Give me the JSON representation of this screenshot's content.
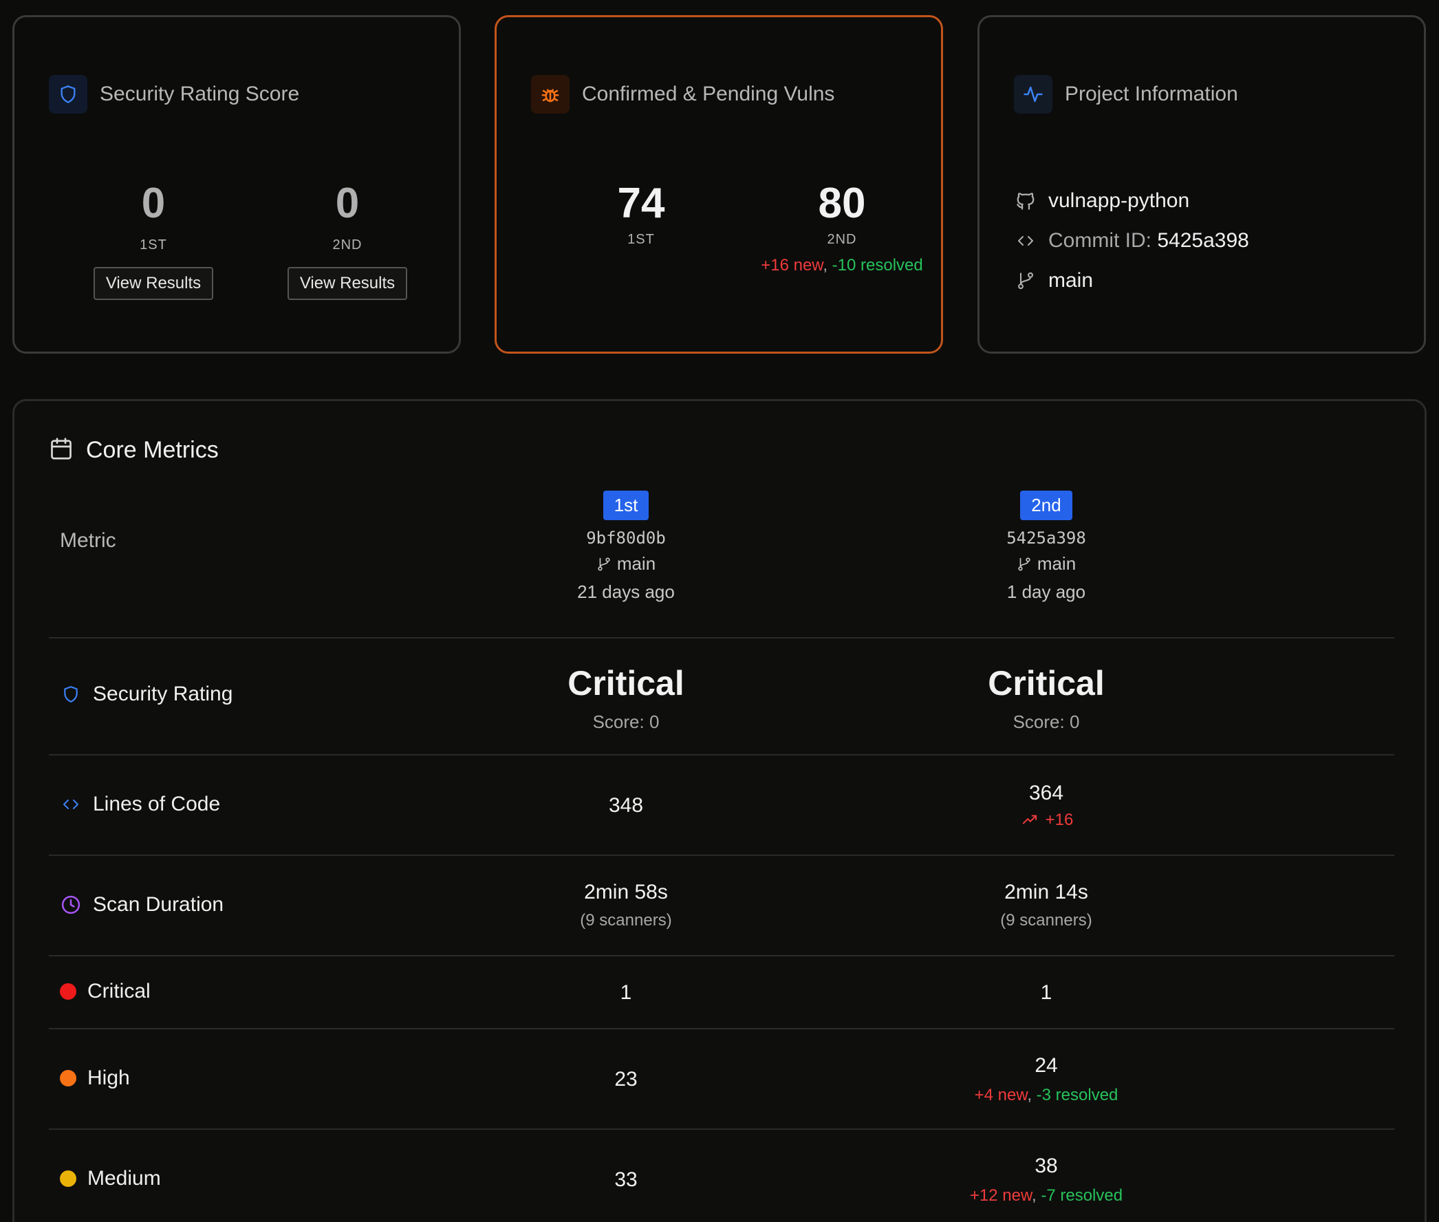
{
  "security_card": {
    "title": "Security Rating Score",
    "first": {
      "value": "0",
      "label": "1ST",
      "button": "View Results"
    },
    "second": {
      "value": "0",
      "label": "2ND",
      "button": "View Results"
    }
  },
  "vulns_card": {
    "title": "Confirmed & Pending Vulns",
    "first": {
      "value": "74",
      "label": "1ST"
    },
    "second": {
      "value": "80",
      "label": "2ND",
      "new": "+16 new",
      "sep": ",",
      "resolved": "-10 resolved"
    }
  },
  "project_card": {
    "title": "Project Information",
    "repo": "vulnapp-python",
    "commit_label": "Commit ID:",
    "commit_id": "5425a398",
    "branch": "main"
  },
  "metrics": {
    "title": "Core Metrics",
    "column_label": "Metric",
    "first": {
      "badge": "1st",
      "hash": "9bf80d0b",
      "branch": "main",
      "age": "21 days ago"
    },
    "second": {
      "badge": "2nd",
      "hash": "5425a398",
      "branch": "main",
      "age": "1 day ago"
    },
    "rows": {
      "security_rating": {
        "label": "Security Rating",
        "first": {
          "rating": "Critical",
          "score": "Score: 0"
        },
        "second": {
          "rating": "Critical",
          "score": "Score: 0"
        }
      },
      "lines_of_code": {
        "label": "Lines of Code",
        "first": "348",
        "second": "364",
        "second_delta": "+16"
      },
      "scan_duration": {
        "label": "Scan Duration",
        "first": "2min 58s",
        "first_note": "(9 scanners)",
        "second": "2min 14s",
        "second_note": "(9 scanners)"
      },
      "critical": {
        "label": "Critical",
        "first": "1",
        "second": "1"
      },
      "high": {
        "label": "High",
        "first": "23",
        "second": "24",
        "second_new": "+4 new",
        "sep": ",",
        "second_resolved": "-3 resolved"
      },
      "medium": {
        "label": "Medium",
        "first": "33",
        "second": "38",
        "second_new": "+12 new",
        "sep": ",",
        "second_resolved": "-7 resolved"
      }
    }
  },
  "colors": {
    "critical": "#ef1b1b",
    "high": "#f97316",
    "medium": "#eab308",
    "accent_blue": "#2563eb",
    "accent_orange": "#c2551b"
  },
  "icons": {
    "shield": "shield-icon",
    "bug": "bug-icon",
    "activity": "activity-icon",
    "github": "github-icon",
    "code": "code-icon",
    "branch": "git-branch-icon",
    "calendar": "calendar-icon",
    "clock": "clock-icon",
    "trend": "trending-up-icon"
  }
}
